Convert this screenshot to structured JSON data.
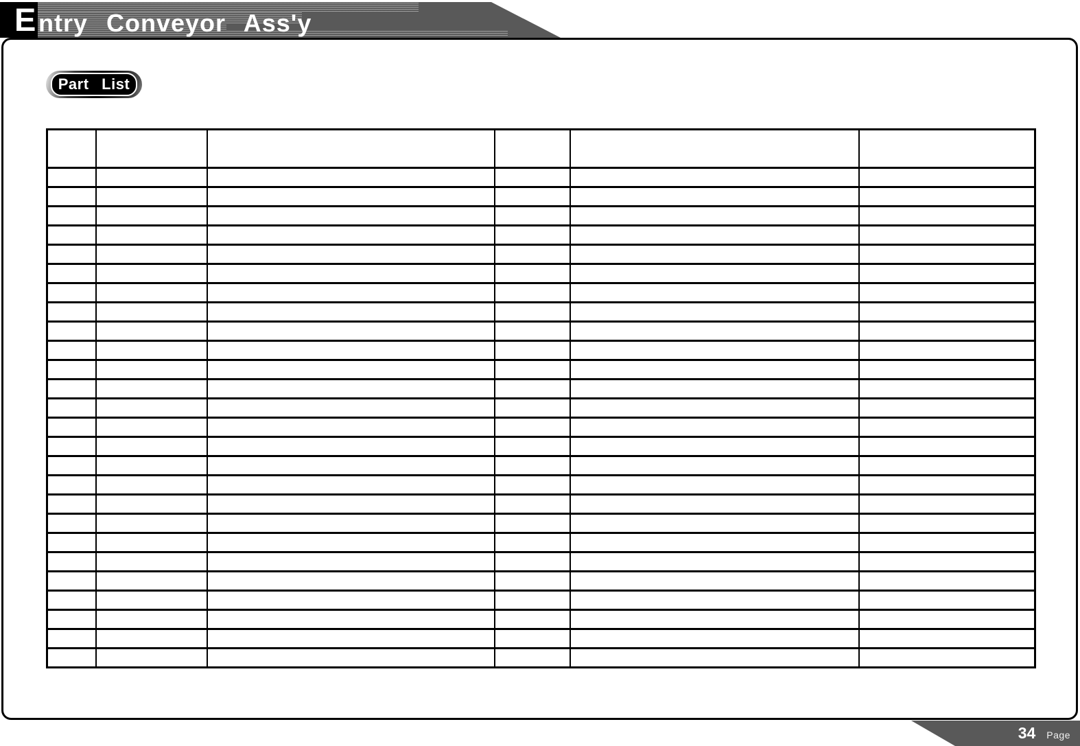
{
  "header": {
    "title": "Entry Conveyor Ass'y",
    "title_initial": "E",
    "title_rest": "ntry Conveyor Ass'y"
  },
  "badge": {
    "label": "Part List"
  },
  "table": {
    "columns": [
      "",
      "",
      "",
      "",
      "",
      ""
    ],
    "rows": [
      [
        "",
        "",
        "",
        "",
        "",
        ""
      ],
      [
        "",
        "",
        "",
        "",
        "",
        ""
      ],
      [
        "",
        "",
        "",
        "",
        "",
        ""
      ],
      [
        "",
        "",
        "",
        "",
        "",
        ""
      ],
      [
        "",
        "",
        "",
        "",
        "",
        ""
      ],
      [
        "",
        "",
        "",
        "",
        "",
        ""
      ],
      [
        "",
        "",
        "",
        "",
        "",
        ""
      ],
      [
        "",
        "",
        "",
        "",
        "",
        ""
      ],
      [
        "",
        "",
        "",
        "",
        "",
        ""
      ],
      [
        "",
        "",
        "",
        "",
        "",
        ""
      ],
      [
        "",
        "",
        "",
        "",
        "",
        ""
      ],
      [
        "",
        "",
        "",
        "",
        "",
        ""
      ],
      [
        "",
        "",
        "",
        "",
        "",
        ""
      ],
      [
        "",
        "",
        "",
        "",
        "",
        ""
      ],
      [
        "",
        "",
        "",
        "",
        "",
        ""
      ],
      [
        "",
        "",
        "",
        "",
        "",
        ""
      ],
      [
        "",
        "",
        "",
        "",
        "",
        ""
      ],
      [
        "",
        "",
        "",
        "",
        "",
        ""
      ],
      [
        "",
        "",
        "",
        "",
        "",
        ""
      ],
      [
        "",
        "",
        "",
        "",
        "",
        ""
      ],
      [
        "",
        "",
        "",
        "",
        "",
        ""
      ],
      [
        "",
        "",
        "",
        "",
        "",
        ""
      ],
      [
        "",
        "",
        "",
        "",
        "",
        ""
      ],
      [
        "",
        "",
        "",
        "",
        "",
        ""
      ],
      [
        "",
        "",
        "",
        "",
        "",
        ""
      ],
      [
        "",
        "",
        "",
        "",
        "",
        ""
      ],
      [
        "",
        "",
        "",
        "",
        "",
        ""
      ]
    ]
  },
  "footer": {
    "page_number": "34",
    "page_label": "Page"
  },
  "colors": {
    "band_gray": "#595959",
    "black": "#000000",
    "white": "#ffffff"
  }
}
